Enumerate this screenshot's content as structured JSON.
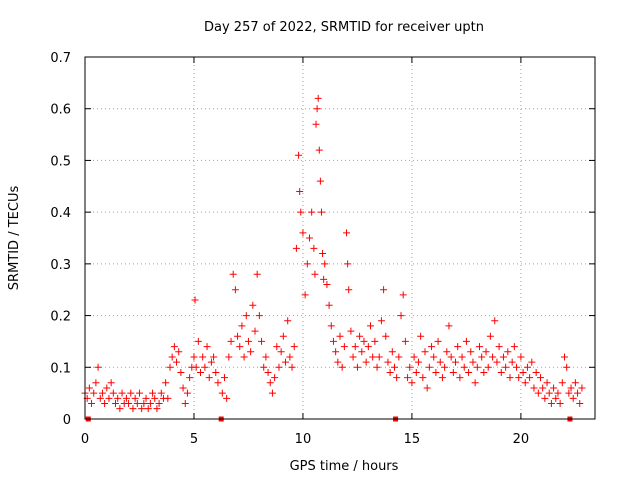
{
  "chart_data": {
    "type": "scatter",
    "title": "Day 257 of 2022, SRMTID for receiver uptn",
    "xlabel": "GPS time / hours",
    "ylabel": "SRMTID / TECUs",
    "xlim": [
      0,
      23.4
    ],
    "ylim": [
      0,
      0.7
    ],
    "x_ticks": [
      "0",
      "5",
      "10",
      "15",
      "20"
    ],
    "y_ticks": [
      "0",
      "0.1",
      "0.2",
      "0.3",
      "0.4",
      "0.5",
      "0.6",
      "0.7"
    ],
    "grid": true,
    "marker": "+",
    "color": "#ff0000",
    "data_gap_markers_x": [
      0.15,
      6.25,
      14.25,
      22.25
    ],
    "series": [
      {
        "name": "uptn",
        "points": [
          [
            0.0,
            0.05
          ],
          [
            0.1,
            0.04
          ],
          [
            0.2,
            0.06
          ],
          [
            0.3,
            0.03
          ],
          [
            0.4,
            0.05
          ],
          [
            0.5,
            0.07
          ],
          [
            0.6,
            0.1
          ],
          [
            0.7,
            0.04
          ],
          [
            0.8,
            0.05
          ],
          [
            0.9,
            0.03
          ],
          [
            1.0,
            0.06
          ],
          [
            1.1,
            0.04
          ],
          [
            1.2,
            0.07
          ],
          [
            1.3,
            0.05
          ],
          [
            1.4,
            0.03
          ],
          [
            1.5,
            0.04
          ],
          [
            1.6,
            0.02
          ],
          [
            1.7,
            0.05
          ],
          [
            1.8,
            0.03
          ],
          [
            1.9,
            0.04
          ],
          [
            2.0,
            0.03
          ],
          [
            2.1,
            0.05
          ],
          [
            2.2,
            0.02
          ],
          [
            2.3,
            0.04
          ],
          [
            2.4,
            0.03
          ],
          [
            2.5,
            0.05
          ],
          [
            2.6,
            0.02
          ],
          [
            2.7,
            0.03
          ],
          [
            2.8,
            0.04
          ],
          [
            2.9,
            0.02
          ],
          [
            3.0,
            0.03
          ],
          [
            3.1,
            0.05
          ],
          [
            3.2,
            0.04
          ],
          [
            3.3,
            0.02
          ],
          [
            3.4,
            0.03
          ],
          [
            3.5,
            0.05
          ],
          [
            3.6,
            0.04
          ],
          [
            3.7,
            0.07
          ],
          [
            3.8,
            0.04
          ],
          [
            3.9,
            0.1
          ],
          [
            4.0,
            0.12
          ],
          [
            4.1,
            0.14
          ],
          [
            4.2,
            0.11
          ],
          [
            4.3,
            0.13
          ],
          [
            4.4,
            0.09
          ],
          [
            4.5,
            0.06
          ],
          [
            4.6,
            0.03
          ],
          [
            4.7,
            0.05
          ],
          [
            4.8,
            0.08
          ],
          [
            4.9,
            0.1
          ],
          [
            5.0,
            0.12
          ],
          [
            5.05,
            0.23
          ],
          [
            5.1,
            0.1
          ],
          [
            5.2,
            0.15
          ],
          [
            5.3,
            0.09
          ],
          [
            5.4,
            0.12
          ],
          [
            5.5,
            0.1
          ],
          [
            5.6,
            0.14
          ],
          [
            5.7,
            0.08
          ],
          [
            5.8,
            0.11
          ],
          [
            5.9,
            0.12
          ],
          [
            6.0,
            0.09
          ],
          [
            6.1,
            0.07
          ],
          [
            6.3,
            0.05
          ],
          [
            6.4,
            0.08
          ],
          [
            6.5,
            0.04
          ],
          [
            6.6,
            0.12
          ],
          [
            6.7,
            0.15
          ],
          [
            6.8,
            0.28
          ],
          [
            6.9,
            0.25
          ],
          [
            7.0,
            0.16
          ],
          [
            7.1,
            0.14
          ],
          [
            7.2,
            0.18
          ],
          [
            7.3,
            0.12
          ],
          [
            7.4,
            0.2
          ],
          [
            7.5,
            0.15
          ],
          [
            7.6,
            0.13
          ],
          [
            7.7,
            0.22
          ],
          [
            7.8,
            0.17
          ],
          [
            7.9,
            0.28
          ],
          [
            8.0,
            0.2
          ],
          [
            8.1,
            0.15
          ],
          [
            8.2,
            0.1
          ],
          [
            8.3,
            0.12
          ],
          [
            8.4,
            0.09
          ],
          [
            8.5,
            0.07
          ],
          [
            8.6,
            0.05
          ],
          [
            8.7,
            0.08
          ],
          [
            8.8,
            0.14
          ],
          [
            8.9,
            0.1
          ],
          [
            9.0,
            0.13
          ],
          [
            9.1,
            0.16
          ],
          [
            9.2,
            0.11
          ],
          [
            9.3,
            0.19
          ],
          [
            9.4,
            0.12
          ],
          [
            9.5,
            0.1
          ],
          [
            9.6,
            0.14
          ],
          [
            9.7,
            0.33
          ],
          [
            9.8,
            0.51
          ],
          [
            9.85,
            0.44
          ],
          [
            9.9,
            0.4
          ],
          [
            10.0,
            0.36
          ],
          [
            10.1,
            0.24
          ],
          [
            10.2,
            0.3
          ],
          [
            10.3,
            0.35
          ],
          [
            10.4,
            0.4
          ],
          [
            10.5,
            0.33
          ],
          [
            10.55,
            0.28
          ],
          [
            10.6,
            0.57
          ],
          [
            10.65,
            0.6
          ],
          [
            10.7,
            0.62
          ],
          [
            10.75,
            0.52
          ],
          [
            10.8,
            0.46
          ],
          [
            10.85,
            0.4
          ],
          [
            10.9,
            0.32
          ],
          [
            10.95,
            0.27
          ],
          [
            11.0,
            0.3
          ],
          [
            11.1,
            0.26
          ],
          [
            11.2,
            0.22
          ],
          [
            11.3,
            0.18
          ],
          [
            11.4,
            0.15
          ],
          [
            11.5,
            0.13
          ],
          [
            11.6,
            0.11
          ],
          [
            11.7,
            0.16
          ],
          [
            11.8,
            0.1
          ],
          [
            11.9,
            0.14
          ],
          [
            12.0,
            0.36
          ],
          [
            12.05,
            0.3
          ],
          [
            12.1,
            0.25
          ],
          [
            12.2,
            0.17
          ],
          [
            12.3,
            0.12
          ],
          [
            12.4,
            0.14
          ],
          [
            12.5,
            0.1
          ],
          [
            12.6,
            0.16
          ],
          [
            12.7,
            0.13
          ],
          [
            12.8,
            0.15
          ],
          [
            12.9,
            0.11
          ],
          [
            13.0,
            0.14
          ],
          [
            13.1,
            0.18
          ],
          [
            13.2,
            0.12
          ],
          [
            13.3,
            0.15
          ],
          [
            13.4,
            0.1
          ],
          [
            13.5,
            0.12
          ],
          [
            13.6,
            0.19
          ],
          [
            13.7,
            0.25
          ],
          [
            13.8,
            0.16
          ],
          [
            13.9,
            0.11
          ],
          [
            14.0,
            0.09
          ],
          [
            14.1,
            0.13
          ],
          [
            14.2,
            0.1
          ],
          [
            14.3,
            0.08
          ],
          [
            14.4,
            0.12
          ],
          [
            14.5,
            0.2
          ],
          [
            14.6,
            0.24
          ],
          [
            14.7,
            0.15
          ],
          [
            14.8,
            0.08
          ],
          [
            14.9,
            0.1
          ],
          [
            15.0,
            0.07
          ],
          [
            15.1,
            0.12
          ],
          [
            15.2,
            0.09
          ],
          [
            15.3,
            0.11
          ],
          [
            15.4,
            0.16
          ],
          [
            15.5,
            0.08
          ],
          [
            15.6,
            0.13
          ],
          [
            15.7,
            0.06
          ],
          [
            15.8,
            0.1
          ],
          [
            15.9,
            0.14
          ],
          [
            16.0,
            0.12
          ],
          [
            16.1,
            0.09
          ],
          [
            16.2,
            0.15
          ],
          [
            16.3,
            0.11
          ],
          [
            16.4,
            0.08
          ],
          [
            16.5,
            0.1
          ],
          [
            16.6,
            0.13
          ],
          [
            16.7,
            0.18
          ],
          [
            16.8,
            0.12
          ],
          [
            16.9,
            0.09
          ],
          [
            17.0,
            0.11
          ],
          [
            17.1,
            0.14
          ],
          [
            17.2,
            0.08
          ],
          [
            17.3,
            0.12
          ],
          [
            17.4,
            0.1
          ],
          [
            17.5,
            0.15
          ],
          [
            17.6,
            0.09
          ],
          [
            17.7,
            0.13
          ],
          [
            17.8,
            0.11
          ],
          [
            17.9,
            0.07
          ],
          [
            18.0,
            0.1
          ],
          [
            18.1,
            0.14
          ],
          [
            18.2,
            0.12
          ],
          [
            18.3,
            0.09
          ],
          [
            18.4,
            0.13
          ],
          [
            18.5,
            0.1
          ],
          [
            18.6,
            0.16
          ],
          [
            18.7,
            0.12
          ],
          [
            18.8,
            0.19
          ],
          [
            18.9,
            0.11
          ],
          [
            19.0,
            0.14
          ],
          [
            19.1,
            0.09
          ],
          [
            19.2,
            0.12
          ],
          [
            19.3,
            0.1
          ],
          [
            19.4,
            0.13
          ],
          [
            19.5,
            0.08
          ],
          [
            19.6,
            0.11
          ],
          [
            19.7,
            0.14
          ],
          [
            19.8,
            0.1
          ],
          [
            19.9,
            0.08
          ],
          [
            20.0,
            0.12
          ],
          [
            20.1,
            0.09
          ],
          [
            20.2,
            0.07
          ],
          [
            20.3,
            0.1
          ],
          [
            20.4,
            0.08
          ],
          [
            20.5,
            0.11
          ],
          [
            20.6,
            0.06
          ],
          [
            20.7,
            0.09
          ],
          [
            20.8,
            0.05
          ],
          [
            20.9,
            0.08
          ],
          [
            21.0,
            0.06
          ],
          [
            21.1,
            0.04
          ],
          [
            21.2,
            0.07
          ],
          [
            21.3,
            0.05
          ],
          [
            21.4,
            0.03
          ],
          [
            21.5,
            0.06
          ],
          [
            21.6,
            0.04
          ],
          [
            21.7,
            0.05
          ],
          [
            21.8,
            0.03
          ],
          [
            21.9,
            0.07
          ],
          [
            22.0,
            0.12
          ],
          [
            22.1,
            0.1
          ],
          [
            22.2,
            0.05
          ],
          [
            22.3,
            0.06
          ],
          [
            22.4,
            0.04
          ],
          [
            22.5,
            0.07
          ],
          [
            22.6,
            0.05
          ],
          [
            22.7,
            0.03
          ],
          [
            22.8,
            0.06
          ]
        ]
      }
    ]
  }
}
